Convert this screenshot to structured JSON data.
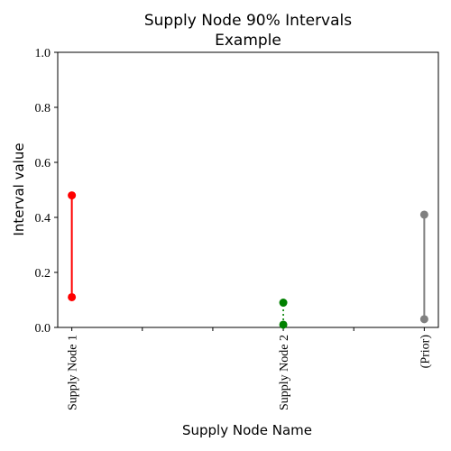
{
  "chart_data": {
    "type": "interval",
    "title_lines": [
      "Supply Node 90% Intervals",
      "Example"
    ],
    "xlabel": "Supply Node Name",
    "ylabel": "Interval value",
    "ylim": [
      0,
      1.0
    ],
    "y_ticks": [
      "0.0",
      "0.2",
      "0.4",
      "0.6",
      "0.8",
      "1.0"
    ],
    "x_index_range": [
      -0.2,
      5.2
    ],
    "x_ticks_labeled": [
      {
        "index": 0,
        "label": "Supply Node 1"
      },
      {
        "index": 3,
        "label": "Supply Node 2"
      },
      {
        "index": 5,
        "label": "(Prior)"
      }
    ],
    "x_ticks_unlabeled": [
      1,
      2,
      4
    ],
    "grid": false,
    "intervals": [
      {
        "index": 0,
        "low": 0.11,
        "high": 0.48,
        "color": "#ff0000",
        "style": "solid"
      },
      {
        "index": 3,
        "low": 0.01,
        "high": 0.09,
        "color": "#008000",
        "style": "dotted"
      },
      {
        "index": 5,
        "low": 0.03,
        "high": 0.41,
        "color": "#808080",
        "style": "solid"
      }
    ]
  }
}
